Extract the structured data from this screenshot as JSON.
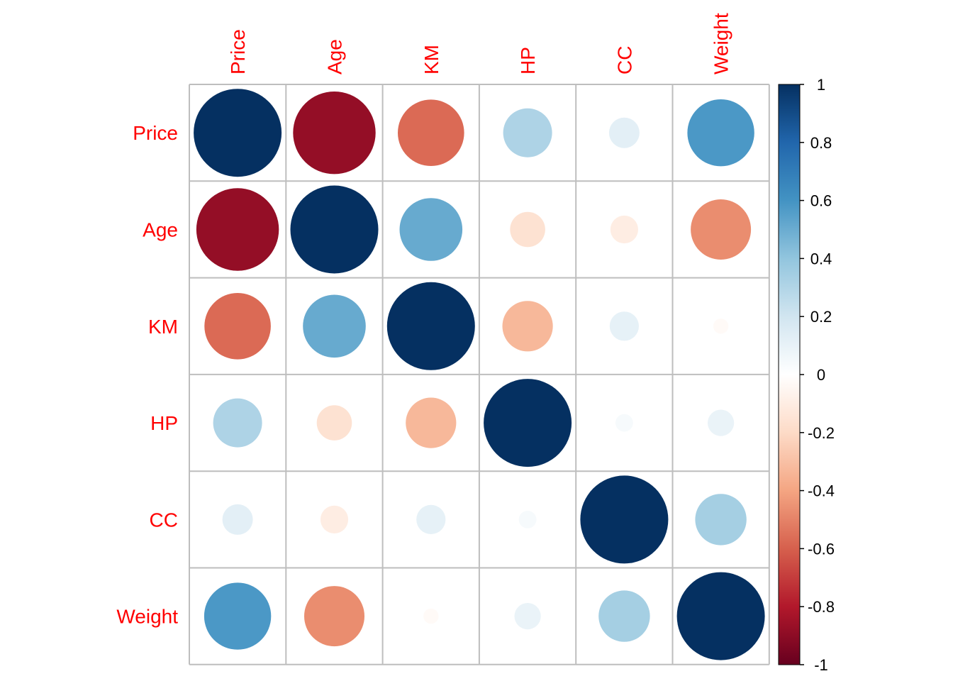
{
  "chart_data": {
    "type": "heatmap",
    "variables": [
      "Price",
      "Age",
      "KM",
      "HP",
      "CC",
      "Weight"
    ],
    "matrix": [
      [
        1.0,
        -0.88,
        -0.57,
        0.31,
        0.12,
        0.58
      ],
      [
        -0.88,
        1.0,
        0.51,
        -0.16,
        -0.1,
        -0.47
      ],
      [
        -0.57,
        0.51,
        1.0,
        -0.33,
        0.11,
        -0.03
      ],
      [
        0.31,
        -0.16,
        -0.33,
        1.0,
        0.04,
        0.09
      ],
      [
        0.12,
        -0.1,
        0.11,
        0.04,
        1.0,
        0.34
      ],
      [
        0.58,
        -0.47,
        -0.03,
        0.09,
        0.34,
        1.0
      ]
    ],
    "colorbar": {
      "ticks": [
        "1",
        "0.8",
        "0.6",
        "0.4",
        "0.2",
        "0",
        "-0.2",
        "-0.4",
        "-0.6",
        "-0.8",
        "-1"
      ],
      "range": [
        -1,
        1
      ],
      "colors": [
        "#67001F",
        "#B2182B",
        "#D6604D",
        "#F4A582",
        "#FDDBC7",
        "#FFFFFF",
        "#D1E5F0",
        "#92C5DE",
        "#4393C3",
        "#2166AC",
        "#053061"
      ]
    },
    "label_color": "#FF0000",
    "grid": true
  }
}
